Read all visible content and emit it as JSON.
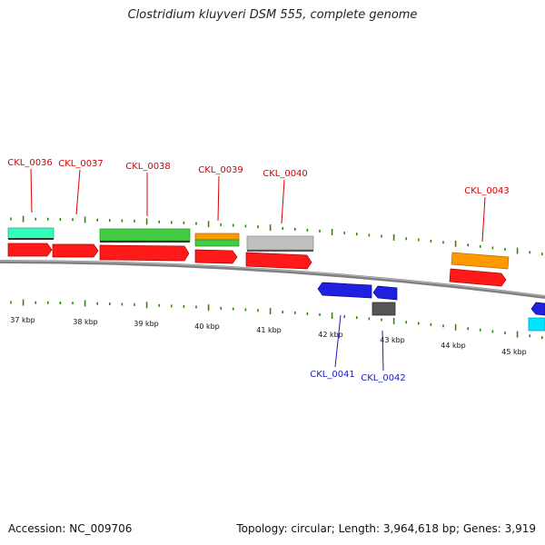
{
  "title": "Clostridium kluyveri DSM 555, complete genome",
  "footer": {
    "accession": "Accession: NC_009706",
    "summary": "Topology: circular; Length: 3,964,618 bp; Genes: 3,919"
  },
  "colors": {
    "backbone": "#808080",
    "tick": "#2e8b00",
    "forward_label": "#d40000",
    "reverse_label": "#1c1cb4",
    "red": "#ff1a1a",
    "blue": "#2020e0",
    "green": "#44cc44",
    "orange": "#ff9900",
    "mint": "#33ffbb",
    "silver": "#c0c0c0",
    "darkgray": "#555555",
    "cyan": "#00e5ff"
  },
  "kbp_labels": [
    "37 kbp",
    "38 kbp",
    "39 kbp",
    "40 kbp",
    "41 kbp",
    "42 kbp",
    "43 kbp",
    "44 kbp",
    "45 kbp"
  ],
  "gene_labels_forward": [
    "CKL_0036",
    "CKL_0037",
    "CKL_0038",
    "CKL_0039",
    "CKL_0040",
    "CKL_0043"
  ],
  "gene_labels_reverse": [
    "CKL_0041",
    "CKL_0042"
  ]
}
